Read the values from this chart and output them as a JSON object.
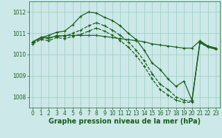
{
  "bg_color": "#cce8e8",
  "grid_color": "#99ccbb",
  "line_color": "#1a5c1a",
  "xlabel": "Graphe pression niveau de la mer (hPa)",
  "xlabel_fontsize": 7,
  "tick_fontsize": 5.5,
  "ylim": [
    1007.5,
    1012.5
  ],
  "xlim": [
    -0.5,
    23.5
  ],
  "yticks": [
    1008,
    1009,
    1010,
    1011,
    1012
  ],
  "xticks": [
    0,
    1,
    2,
    3,
    4,
    5,
    6,
    7,
    8,
    9,
    10,
    11,
    12,
    13,
    14,
    15,
    16,
    17,
    18,
    19,
    20,
    21,
    22,
    23
  ],
  "series": [
    {
      "x": [
        0,
        1,
        2,
        3,
        4,
        5,
        6,
        7,
        8,
        9,
        10,
        11,
        12,
        13,
        14,
        15,
        16,
        17,
        18,
        19,
        20,
        21,
        22,
        23
      ],
      "y": [
        1010.6,
        1010.8,
        1010.8,
        1010.85,
        1010.9,
        1010.9,
        1010.9,
        1010.9,
        1010.9,
        1010.85,
        1010.8,
        1010.75,
        1010.7,
        1010.65,
        1010.6,
        1010.5,
        1010.45,
        1010.4,
        1010.35,
        1010.3,
        1010.3,
        1010.65,
        1010.4,
        1010.3
      ],
      "marker": "+",
      "markersize": 3.5,
      "linewidth": 0.9,
      "dashed": false
    },
    {
      "x": [
        0,
        1,
        2,
        3,
        4,
        5,
        6,
        7,
        8,
        9,
        10,
        11,
        12,
        13,
        14,
        15,
        16,
        17,
        18,
        19,
        20,
        21,
        22,
        23
      ],
      "y": [
        1010.6,
        1010.8,
        1010.9,
        1011.05,
        1011.1,
        1011.4,
        1011.8,
        1012.0,
        1011.95,
        1011.75,
        1011.6,
        1011.35,
        1011.0,
        1010.7,
        1010.2,
        1009.6,
        1009.3,
        1008.85,
        1008.5,
        1008.75,
        1007.85,
        1010.6,
        1010.4,
        1010.3
      ],
      "marker": "+",
      "markersize": 3.5,
      "linewidth": 0.9,
      "dashed": false
    },
    {
      "x": [
        0,
        1,
        2,
        3,
        4,
        5,
        6,
        7,
        8,
        9,
        10,
        11,
        12,
        13,
        14,
        15,
        16,
        17,
        18,
        19,
        20,
        21,
        22,
        23
      ],
      "y": [
        1010.55,
        1010.75,
        1010.75,
        1010.9,
        1010.85,
        1011.0,
        1011.15,
        1011.35,
        1011.5,
        1011.35,
        1011.15,
        1010.9,
        1010.6,
        1010.2,
        1009.7,
        1009.1,
        1008.6,
        1008.35,
        1008.0,
        1007.85,
        1007.8,
        1010.55,
        1010.35,
        1010.25
      ],
      "marker": "+",
      "markersize": 3.5,
      "linewidth": 0.9,
      "dashed": true
    },
    {
      "x": [
        0,
        1,
        2,
        3,
        4,
        5,
        6,
        7,
        8,
        9,
        10,
        11,
        12,
        13,
        14,
        15,
        16,
        17,
        18,
        19,
        20,
        21,
        22,
        23
      ],
      "y": [
        1010.5,
        1010.7,
        1010.65,
        1010.8,
        1010.75,
        1010.85,
        1010.95,
        1011.1,
        1011.25,
        1011.1,
        1010.9,
        1010.65,
        1010.35,
        1009.95,
        1009.45,
        1008.85,
        1008.35,
        1008.1,
        1007.85,
        1007.75,
        1007.75,
        1010.55,
        1010.35,
        1010.25
      ],
      "marker": "+",
      "markersize": 3.5,
      "linewidth": 0.9,
      "dashed": true
    }
  ]
}
